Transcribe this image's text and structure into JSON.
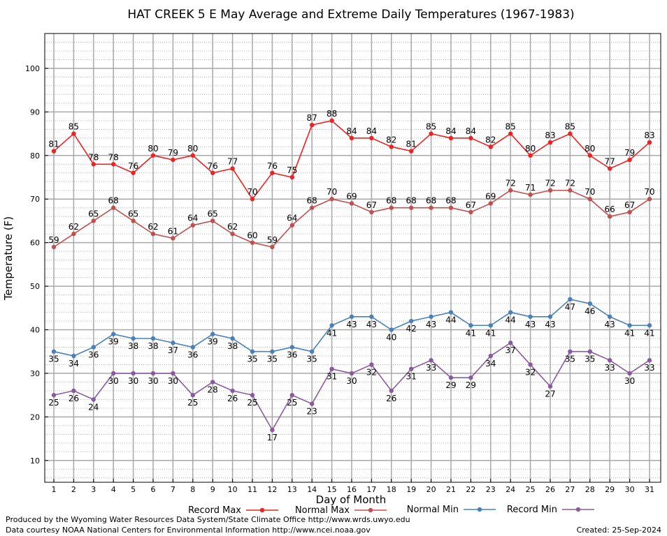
{
  "chart_data": {
    "type": "line",
    "title": "HAT CREEK 5 E May Average and Extreme Daily Temperatures (1967-1983)",
    "xlabel": "Day of Month",
    "ylabel": "Temperature (F)",
    "ylim": [
      5,
      108
    ],
    "y_ticks": [
      10,
      20,
      30,
      40,
      50,
      60,
      70,
      80,
      90,
      100
    ],
    "x": [
      1,
      2,
      3,
      4,
      5,
      6,
      7,
      8,
      9,
      10,
      11,
      12,
      13,
      14,
      15,
      16,
      17,
      18,
      19,
      20,
      21,
      22,
      23,
      24,
      25,
      26,
      27,
      28,
      29,
      30,
      31
    ],
    "grid": true,
    "legend_position": "bottom",
    "series": [
      {
        "name": "Record Max",
        "color": "#ee2222",
        "label_position": "above",
        "values": [
          81,
          85,
          78,
          78,
          76,
          80,
          79,
          80,
          76,
          77,
          70,
          76,
          75,
          87,
          88,
          84,
          84,
          82,
          81,
          85,
          84,
          84,
          82,
          85,
          80,
          83,
          85,
          80,
          77,
          79,
          83
        ]
      },
      {
        "name": "Normal Max",
        "color": "#c05050",
        "label_position": "above",
        "values": [
          59,
          62,
          65,
          68,
          65,
          62,
          61,
          64,
          65,
          62,
          60,
          59,
          64,
          68,
          70,
          69,
          67,
          68,
          68,
          68,
          68,
          67,
          69,
          72,
          71,
          72,
          72,
          70,
          66,
          67,
          70
        ]
      },
      {
        "name": "Normal Min",
        "color": "#4a80b8",
        "label_position": "below",
        "values": [
          35,
          34,
          36,
          39,
          38,
          38,
          37,
          36,
          39,
          38,
          35,
          35,
          36,
          35,
          41,
          43,
          43,
          40,
          42,
          43,
          44,
          41,
          41,
          44,
          43,
          43,
          47,
          46,
          43,
          41,
          41
        ]
      },
      {
        "name": "Record Min",
        "color": "#8a5aa0",
        "label_position": "below",
        "values": [
          25,
          26,
          24,
          30,
          30,
          30,
          30,
          25,
          28,
          26,
          25,
          17,
          25,
          23,
          31,
          30,
          32,
          26,
          31,
          33,
          29,
          29,
          34,
          37,
          32,
          27,
          35,
          35,
          33,
          30,
          33
        ]
      }
    ]
  },
  "footer": {
    "produced_by": "Produced by the Wyoming Water Resources Data System/State Climate Office http://www.wrds.uwyo.edu",
    "data_courtesy": "Data courtesy NOAA National Centers for Environmental Information http://www.ncei.noaa.gov",
    "created": "Created: 25-Sep-2024"
  }
}
